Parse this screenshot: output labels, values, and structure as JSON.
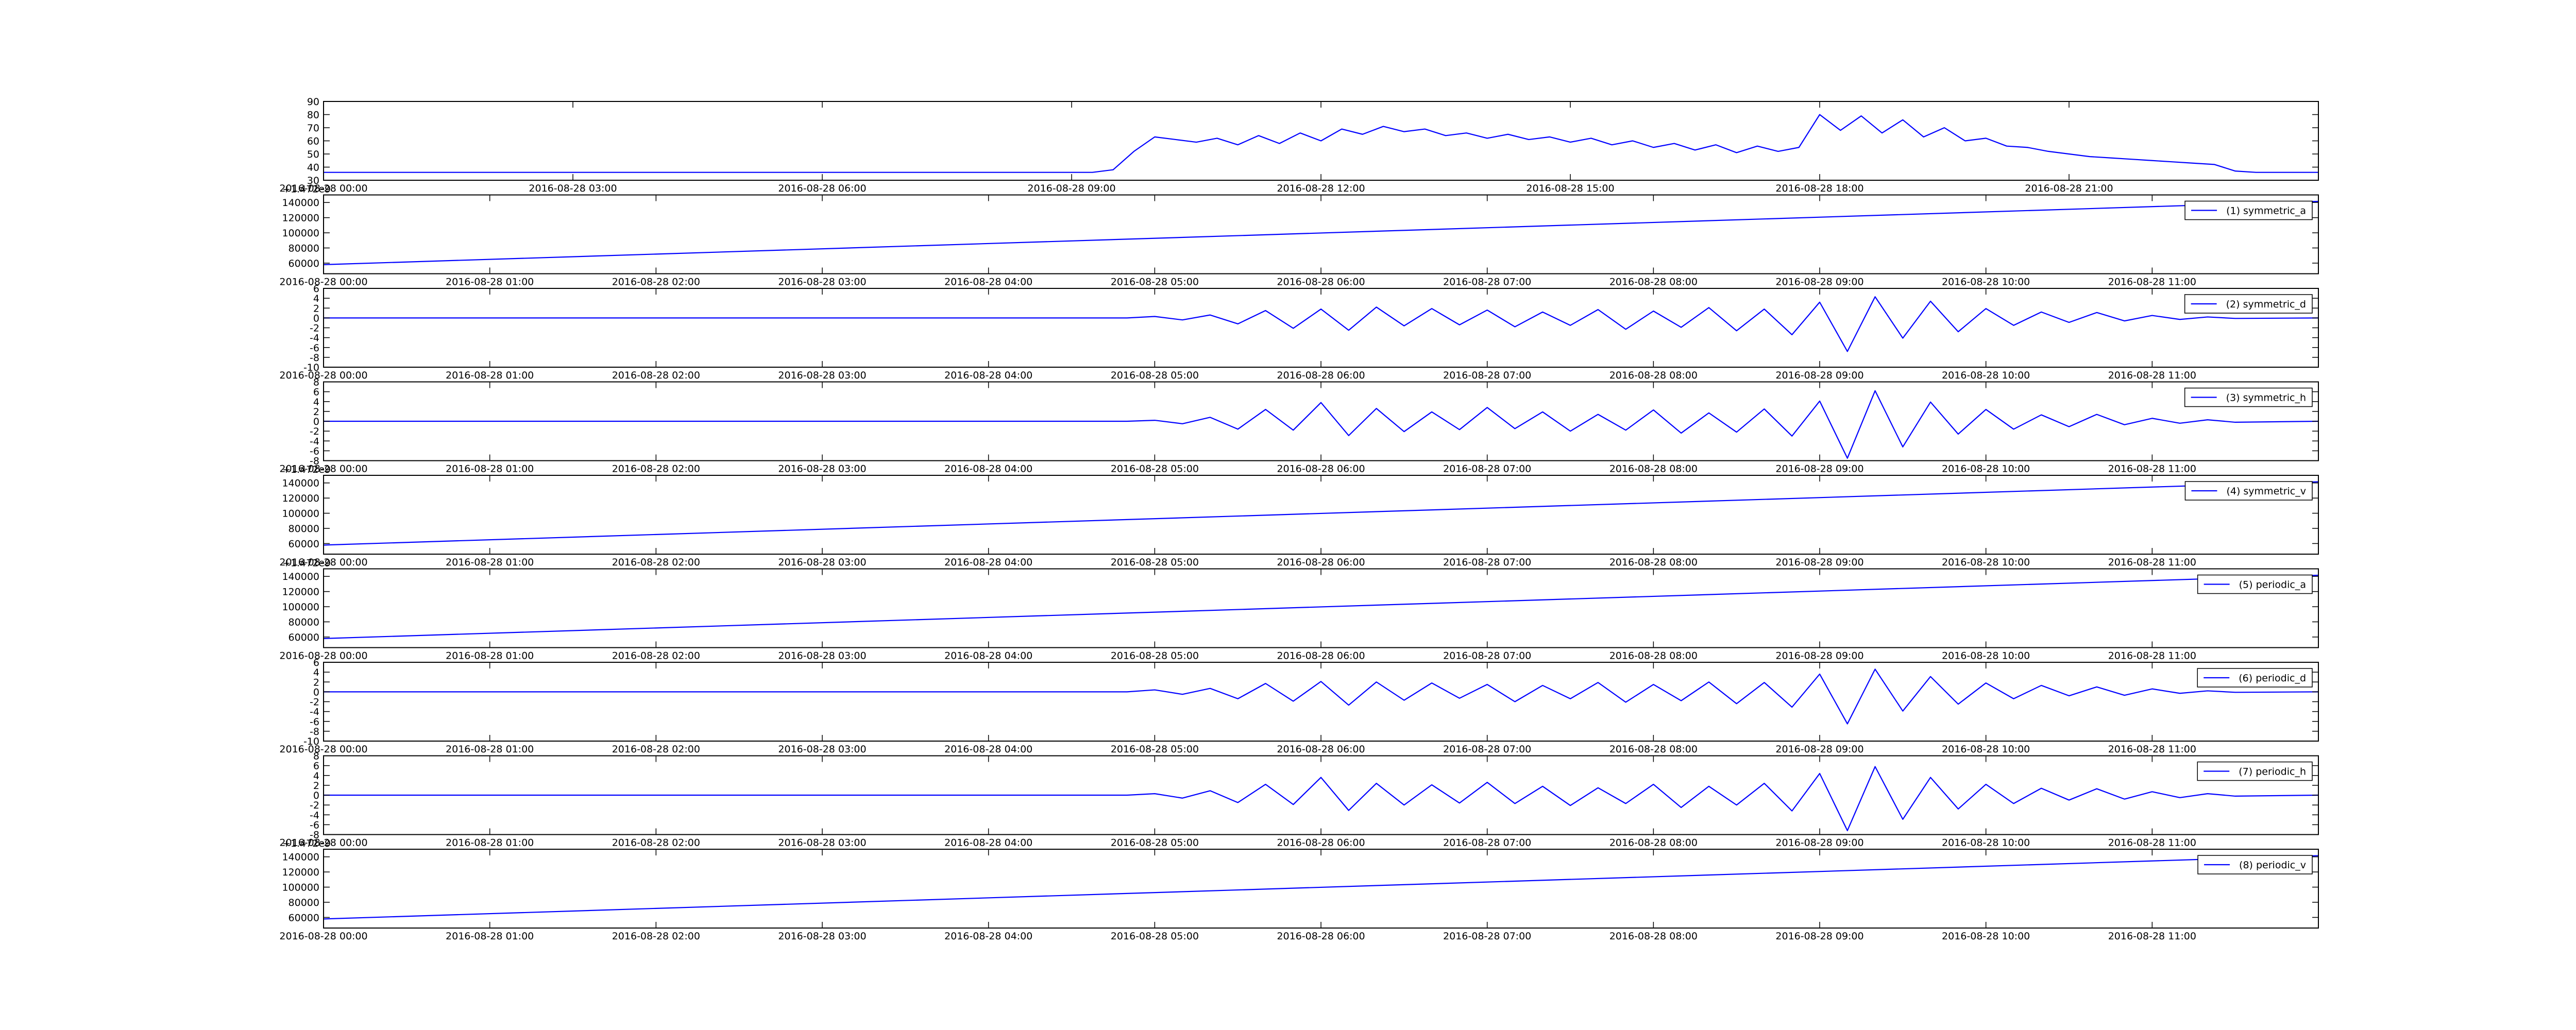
{
  "chart_data": [
    {
      "type": "line",
      "color": "#0000ff",
      "x": [
        "2016-08-28 00:00",
        "2016-08-28 09:00",
        "2016-08-28 09:15",
        "2016-08-28 09:30",
        "2016-08-28 09:45",
        "2016-08-28 10:00",
        "2016-08-28 10:15",
        "2016-08-28 10:30",
        "2016-08-28 10:45",
        "2016-08-28 11:00",
        "2016-08-28 11:15",
        "2016-08-28 11:30",
        "2016-08-28 11:45",
        "2016-08-28 12:00",
        "2016-08-28 12:15",
        "2016-08-28 12:30",
        "2016-08-28 12:45",
        "2016-08-28 13:00",
        "2016-08-28 13:15",
        "2016-08-28 13:30",
        "2016-08-28 13:45",
        "2016-08-28 14:00",
        "2016-08-28 14:15",
        "2016-08-28 14:30",
        "2016-08-28 14:45",
        "2016-08-28 15:00",
        "2016-08-28 15:15",
        "2016-08-28 15:30",
        "2016-08-28 15:45",
        "2016-08-28 16:00",
        "2016-08-28 16:15",
        "2016-08-28 16:30",
        "2016-08-28 16:45",
        "2016-08-28 17:00",
        "2016-08-28 17:15",
        "2016-08-28 17:30",
        "2016-08-28 17:45",
        "2016-08-28 18:00",
        "2016-08-28 18:15",
        "2016-08-28 18:30",
        "2016-08-28 18:45",
        "2016-08-28 19:00",
        "2016-08-28 19:15",
        "2016-08-28 19:30",
        "2016-08-28 19:45",
        "2016-08-28 20:00",
        "2016-08-28 20:15",
        "2016-08-28 20:30",
        "2016-08-28 20:45",
        "2016-08-28 21:00",
        "2016-08-28 21:15",
        "2016-08-28 21:30",
        "2016-08-28 21:45",
        "2016-08-28 22:00",
        "2016-08-28 22:15",
        "2016-08-28 22:30",
        "2016-08-28 22:45",
        "2016-08-28 23:00",
        "2016-08-28 23:15",
        "2016-08-28 23:30",
        "2016-08-28 23:45",
        "2016-08-29 00:00"
      ],
      "values": [
        36,
        36,
        36,
        38,
        52,
        63,
        61,
        59,
        62,
        57,
        64,
        58,
        66,
        60,
        69,
        65,
        71,
        67,
        69,
        64,
        66,
        62,
        65,
        61,
        63,
        59,
        62,
        57,
        60,
        55,
        58,
        53,
        57,
        51,
        56,
        52,
        55,
        80,
        68,
        79,
        66,
        76,
        63,
        70,
        60,
        62,
        56,
        55,
        52,
        50,
        48,
        47,
        46,
        45,
        44,
        43,
        42,
        37,
        36,
        36,
        36,
        36
      ],
      "xlim": [
        "2016-08-28 00:00",
        "2016-08-29 00:00"
      ],
      "ylim": [
        30,
        90
      ],
      "xticks": [
        "2016-08-28 00:00",
        "2016-08-28 03:00",
        "2016-08-28 06:00",
        "2016-08-28 09:00",
        "2016-08-28 12:00",
        "2016-08-28 15:00",
        "2016-08-28 18:00",
        "2016-08-28 21:00"
      ],
      "yticks": [
        30,
        40,
        50,
        60,
        70,
        80,
        90
      ]
    },
    {
      "type": "line",
      "offset_text": "+1.472e9",
      "legend": "upper right",
      "x": [
        "2016-08-28 00:00",
        "2016-08-28 12:00"
      ],
      "series": [
        {
          "name": "(1) symmetric_a",
          "color": "#0000ff",
          "values": [
            58000,
            141500
          ]
        }
      ],
      "xlim": [
        "2016-08-28 00:00",
        "2016-08-28 12:00"
      ],
      "ylim": [
        46000,
        150000
      ],
      "xticks": [
        "2016-08-28 00:00",
        "2016-08-28 01:00",
        "2016-08-28 02:00",
        "2016-08-28 03:00",
        "2016-08-28 04:00",
        "2016-08-28 05:00",
        "2016-08-28 06:00",
        "2016-08-28 07:00",
        "2016-08-28 08:00",
        "2016-08-28 09:00",
        "2016-08-28 10:00",
        "2016-08-28 11:00"
      ],
      "yticks": [
        60000,
        80000,
        100000,
        120000,
        140000
      ]
    },
    {
      "type": "line",
      "legend": "upper right",
      "x": [
        "2016-08-28 00:00",
        "2016-08-28 04:50",
        "2016-08-28 05:00",
        "2016-08-28 05:10",
        "2016-08-28 05:20",
        "2016-08-28 05:30",
        "2016-08-28 05:40",
        "2016-08-28 05:50",
        "2016-08-28 06:00",
        "2016-08-28 06:10",
        "2016-08-28 06:20",
        "2016-08-28 06:30",
        "2016-08-28 06:40",
        "2016-08-28 06:50",
        "2016-08-28 07:00",
        "2016-08-28 07:10",
        "2016-08-28 07:20",
        "2016-08-28 07:30",
        "2016-08-28 07:40",
        "2016-08-28 07:50",
        "2016-08-28 08:00",
        "2016-08-28 08:10",
        "2016-08-28 08:20",
        "2016-08-28 08:30",
        "2016-08-28 08:40",
        "2016-08-28 08:50",
        "2016-08-28 09:00",
        "2016-08-28 09:10",
        "2016-08-28 09:20",
        "2016-08-28 09:30",
        "2016-08-28 09:40",
        "2016-08-28 09:50",
        "2016-08-28 10:00",
        "2016-08-28 10:10",
        "2016-08-28 10:20",
        "2016-08-28 10:30",
        "2016-08-28 10:40",
        "2016-08-28 10:50",
        "2016-08-28 11:00",
        "2016-08-28 11:10",
        "2016-08-28 11:20",
        "2016-08-28 11:30",
        "2016-08-28 12:00"
      ],
      "series": [
        {
          "name": "(2) symmetric_d",
          "color": "#0000ff",
          "values": [
            0,
            0,
            0.3,
            -0.4,
            0.6,
            -1.2,
            1.5,
            -2.1,
            1.8,
            -2.5,
            2.2,
            -1.6,
            1.9,
            -1.4,
            1.6,
            -1.8,
            1.2,
            -1.5,
            1.7,
            -2.3,
            1.4,
            -1.9,
            2.1,
            -2.6,
            1.8,
            -3.4,
            3.2,
            -6.8,
            4.3,
            -4.1,
            3.4,
            -2.8,
            1.9,
            -1.5,
            1.2,
            -0.9,
            1.1,
            -0.6,
            0.5,
            -0.3,
            0.2,
            -0.1,
            0
          ]
        }
      ],
      "xlim": [
        "2016-08-28 00:00",
        "2016-08-28 12:00"
      ],
      "ylim": [
        -10,
        6
      ],
      "xticks": [
        "2016-08-28 00:00",
        "2016-08-28 01:00",
        "2016-08-28 02:00",
        "2016-08-28 03:00",
        "2016-08-28 04:00",
        "2016-08-28 05:00",
        "2016-08-28 06:00",
        "2016-08-28 07:00",
        "2016-08-28 08:00",
        "2016-08-28 09:00",
        "2016-08-28 10:00",
        "2016-08-28 11:00"
      ],
      "yticks": [
        -10,
        -8,
        -6,
        -4,
        -2,
        0,
        2,
        4,
        6
      ]
    },
    {
      "type": "line",
      "legend": "upper right",
      "x": [
        "2016-08-28 00:00",
        "2016-08-28 04:50",
        "2016-08-28 05:00",
        "2016-08-28 05:10",
        "2016-08-28 05:20",
        "2016-08-28 05:30",
        "2016-08-28 05:40",
        "2016-08-28 05:50",
        "2016-08-28 06:00",
        "2016-08-28 06:10",
        "2016-08-28 06:20",
        "2016-08-28 06:30",
        "2016-08-28 06:40",
        "2016-08-28 06:50",
        "2016-08-28 07:00",
        "2016-08-28 07:10",
        "2016-08-28 07:20",
        "2016-08-28 07:30",
        "2016-08-28 07:40",
        "2016-08-28 07:50",
        "2016-08-28 08:00",
        "2016-08-28 08:10",
        "2016-08-28 08:20",
        "2016-08-28 08:30",
        "2016-08-28 08:40",
        "2016-08-28 08:50",
        "2016-08-28 09:00",
        "2016-08-28 09:10",
        "2016-08-28 09:20",
        "2016-08-28 09:30",
        "2016-08-28 09:40",
        "2016-08-28 09:50",
        "2016-08-28 10:00",
        "2016-08-28 10:10",
        "2016-08-28 10:20",
        "2016-08-28 10:30",
        "2016-08-28 10:40",
        "2016-08-28 10:50",
        "2016-08-28 11:00",
        "2016-08-28 11:10",
        "2016-08-28 11:20",
        "2016-08-28 11:30",
        "2016-08-28 12:00"
      ],
      "series": [
        {
          "name": "(3) symmetric_h",
          "color": "#0000ff",
          "values": [
            0,
            0,
            0.2,
            -0.5,
            0.8,
            -1.6,
            2.4,
            -1.8,
            3.8,
            -2.9,
            2.6,
            -2.1,
            1.9,
            -1.7,
            2.8,
            -1.5,
            1.9,
            -2.0,
            1.4,
            -1.8,
            2.3,
            -2.4,
            1.7,
            -2.2,
            2.5,
            -3.0,
            4.1,
            -7.5,
            6.2,
            -5.2,
            3.9,
            -2.6,
            2.4,
            -1.6,
            1.3,
            -1.1,
            1.4,
            -0.7,
            0.6,
            -0.4,
            0.3,
            -0.2,
            0
          ]
        }
      ],
      "xlim": [
        "2016-08-28 00:00",
        "2016-08-28 12:00"
      ],
      "ylim": [
        -8,
        8
      ],
      "xticks": [
        "2016-08-28 00:00",
        "2016-08-28 01:00",
        "2016-08-28 02:00",
        "2016-08-28 03:00",
        "2016-08-28 04:00",
        "2016-08-28 05:00",
        "2016-08-28 06:00",
        "2016-08-28 07:00",
        "2016-08-28 08:00",
        "2016-08-28 09:00",
        "2016-08-28 10:00",
        "2016-08-28 11:00"
      ],
      "yticks": [
        -8,
        -6,
        -4,
        -2,
        0,
        2,
        4,
        6,
        8
      ]
    },
    {
      "type": "line",
      "offset_text": "+1.472e9",
      "legend": "upper right",
      "x": [
        "2016-08-28 00:00",
        "2016-08-28 12:00"
      ],
      "series": [
        {
          "name": "(4) symmetric_v",
          "color": "#0000ff",
          "values": [
            58000,
            141500
          ]
        }
      ],
      "xlim": [
        "2016-08-28 00:00",
        "2016-08-28 12:00"
      ],
      "ylim": [
        46000,
        150000
      ],
      "xticks": [
        "2016-08-28 00:00",
        "2016-08-28 01:00",
        "2016-08-28 02:00",
        "2016-08-28 03:00",
        "2016-08-28 04:00",
        "2016-08-28 05:00",
        "2016-08-28 06:00",
        "2016-08-28 07:00",
        "2016-08-28 08:00",
        "2016-08-28 09:00",
        "2016-08-28 10:00",
        "2016-08-28 11:00"
      ],
      "yticks": [
        60000,
        80000,
        100000,
        120000,
        140000
      ]
    },
    {
      "type": "line",
      "offset_text": "+1.472e9",
      "legend": "upper right",
      "x": [
        "2016-08-28 00:00",
        "2016-08-28 12:00"
      ],
      "series": [
        {
          "name": "(5) periodic_a",
          "color": "#0000ff",
          "values": [
            58000,
            141500
          ]
        }
      ],
      "xlim": [
        "2016-08-28 00:00",
        "2016-08-28 12:00"
      ],
      "ylim": [
        46000,
        150000
      ],
      "xticks": [
        "2016-08-28 00:00",
        "2016-08-28 01:00",
        "2016-08-28 02:00",
        "2016-08-28 03:00",
        "2016-08-28 04:00",
        "2016-08-28 05:00",
        "2016-08-28 06:00",
        "2016-08-28 07:00",
        "2016-08-28 08:00",
        "2016-08-28 09:00",
        "2016-08-28 10:00",
        "2016-08-28 11:00"
      ],
      "yticks": [
        60000,
        80000,
        100000,
        120000,
        140000
      ]
    },
    {
      "type": "line",
      "legend": "upper right",
      "x": [
        "2016-08-28 00:00",
        "2016-08-28 04:50",
        "2016-08-28 05:00",
        "2016-08-28 05:10",
        "2016-08-28 05:20",
        "2016-08-28 05:30",
        "2016-08-28 05:40",
        "2016-08-28 05:50",
        "2016-08-28 06:00",
        "2016-08-28 06:10",
        "2016-08-28 06:20",
        "2016-08-28 06:30",
        "2016-08-28 06:40",
        "2016-08-28 06:50",
        "2016-08-28 07:00",
        "2016-08-28 07:10",
        "2016-08-28 07:20",
        "2016-08-28 07:30",
        "2016-08-28 07:40",
        "2016-08-28 07:50",
        "2016-08-28 08:00",
        "2016-08-28 08:10",
        "2016-08-28 08:20",
        "2016-08-28 08:30",
        "2016-08-28 08:40",
        "2016-08-28 08:50",
        "2016-08-28 09:00",
        "2016-08-28 09:10",
        "2016-08-28 09:20",
        "2016-08-28 09:30",
        "2016-08-28 09:40",
        "2016-08-28 09:50",
        "2016-08-28 10:00",
        "2016-08-28 10:10",
        "2016-08-28 10:20",
        "2016-08-28 10:30",
        "2016-08-28 10:40",
        "2016-08-28 10:50",
        "2016-08-28 11:00",
        "2016-08-28 11:10",
        "2016-08-28 11:20",
        "2016-08-28 11:30",
        "2016-08-28 12:00"
      ],
      "series": [
        {
          "name": "(6) periodic_d",
          "color": "#0000ff",
          "values": [
            0,
            0,
            0.4,
            -0.5,
            0.7,
            -1.4,
            1.7,
            -1.9,
            2.1,
            -2.7,
            2.0,
            -1.7,
            1.8,
            -1.3,
            1.5,
            -2.0,
            1.3,
            -1.4,
            1.9,
            -2.1,
            1.5,
            -1.8,
            2.0,
            -2.4,
            1.9,
            -3.1,
            3.6,
            -6.5,
            4.6,
            -3.9,
            3.1,
            -2.5,
            1.8,
            -1.4,
            1.3,
            -0.8,
            1.0,
            -0.7,
            0.6,
            -0.3,
            0.2,
            -0.1,
            0
          ]
        }
      ],
      "xlim": [
        "2016-08-28 00:00",
        "2016-08-28 12:00"
      ],
      "ylim": [
        -10,
        6
      ],
      "xticks": [
        "2016-08-28 00:00",
        "2016-08-28 01:00",
        "2016-08-28 02:00",
        "2016-08-28 03:00",
        "2016-08-28 04:00",
        "2016-08-28 05:00",
        "2016-08-28 06:00",
        "2016-08-28 07:00",
        "2016-08-28 08:00",
        "2016-08-28 09:00",
        "2016-08-28 10:00",
        "2016-08-28 11:00"
      ],
      "yticks": [
        -10,
        -8,
        -6,
        -4,
        -2,
        0,
        2,
        4,
        6
      ]
    },
    {
      "type": "line",
      "legend": "upper right",
      "x": [
        "2016-08-28 00:00",
        "2016-08-28 04:50",
        "2016-08-28 05:00",
        "2016-08-28 05:10",
        "2016-08-28 05:20",
        "2016-08-28 05:30",
        "2016-08-28 05:40",
        "2016-08-28 05:50",
        "2016-08-28 06:00",
        "2016-08-28 06:10",
        "2016-08-28 06:20",
        "2016-08-28 06:30",
        "2016-08-28 06:40",
        "2016-08-28 06:50",
        "2016-08-28 07:00",
        "2016-08-28 07:10",
        "2016-08-28 07:20",
        "2016-08-28 07:30",
        "2016-08-28 07:40",
        "2016-08-28 07:50",
        "2016-08-28 08:00",
        "2016-08-28 08:10",
        "2016-08-28 08:20",
        "2016-08-28 08:30",
        "2016-08-28 08:40",
        "2016-08-28 08:50",
        "2016-08-28 09:00",
        "2016-08-28 09:10",
        "2016-08-28 09:20",
        "2016-08-28 09:30",
        "2016-08-28 09:40",
        "2016-08-28 09:50",
        "2016-08-28 10:00",
        "2016-08-28 10:10",
        "2016-08-28 10:20",
        "2016-08-28 10:30",
        "2016-08-28 10:40",
        "2016-08-28 10:50",
        "2016-08-28 11:00",
        "2016-08-28 11:10",
        "2016-08-28 11:20",
        "2016-08-28 11:30",
        "2016-08-28 12:00"
      ],
      "series": [
        {
          "name": "(7) periodic_h",
          "color": "#0000ff",
          "values": [
            0,
            0,
            0.3,
            -0.6,
            0.9,
            -1.5,
            2.2,
            -1.9,
            3.6,
            -3.1,
            2.4,
            -2.0,
            2.1,
            -1.6,
            2.6,
            -1.7,
            1.8,
            -2.1,
            1.5,
            -1.7,
            2.2,
            -2.5,
            1.8,
            -2.0,
            2.4,
            -3.2,
            4.4,
            -7.2,
            5.8,
            -4.9,
            3.6,
            -2.8,
            2.2,
            -1.7,
            1.4,
            -1.0,
            1.3,
            -0.8,
            0.7,
            -0.5,
            0.3,
            -0.2,
            0
          ]
        }
      ],
      "xlim": [
        "2016-08-28 00:00",
        "2016-08-28 12:00"
      ],
      "ylim": [
        -8,
        8
      ],
      "xticks": [
        "2016-08-28 00:00",
        "2016-08-28 01:00",
        "2016-08-28 02:00",
        "2016-08-28 03:00",
        "2016-08-28 04:00",
        "2016-08-28 05:00",
        "2016-08-28 06:00",
        "2016-08-28 07:00",
        "2016-08-28 08:00",
        "2016-08-28 09:00",
        "2016-08-28 10:00",
        "2016-08-28 11:00"
      ],
      "yticks": [
        -8,
        -6,
        -4,
        -2,
        0,
        2,
        4,
        6,
        8
      ]
    },
    {
      "type": "line",
      "offset_text": "+1.472e9",
      "legend": "upper right",
      "x": [
        "2016-08-28 00:00",
        "2016-08-28 12:00"
      ],
      "series": [
        {
          "name": "(8) periodic_v",
          "color": "#0000ff",
          "values": [
            58000,
            141500
          ]
        }
      ],
      "xlim": [
        "2016-08-28 00:00",
        "2016-08-28 12:00"
      ],
      "ylim": [
        46000,
        150000
      ],
      "xticks": [
        "2016-08-28 00:00",
        "2016-08-28 01:00",
        "2016-08-28 02:00",
        "2016-08-28 03:00",
        "2016-08-28 04:00",
        "2016-08-28 05:00",
        "2016-08-28 06:00",
        "2016-08-28 07:00",
        "2016-08-28 08:00",
        "2016-08-28 09:00",
        "2016-08-28 10:00",
        "2016-08-28 11:00"
      ],
      "yticks": [
        60000,
        80000,
        100000,
        120000,
        140000
      ]
    }
  ]
}
